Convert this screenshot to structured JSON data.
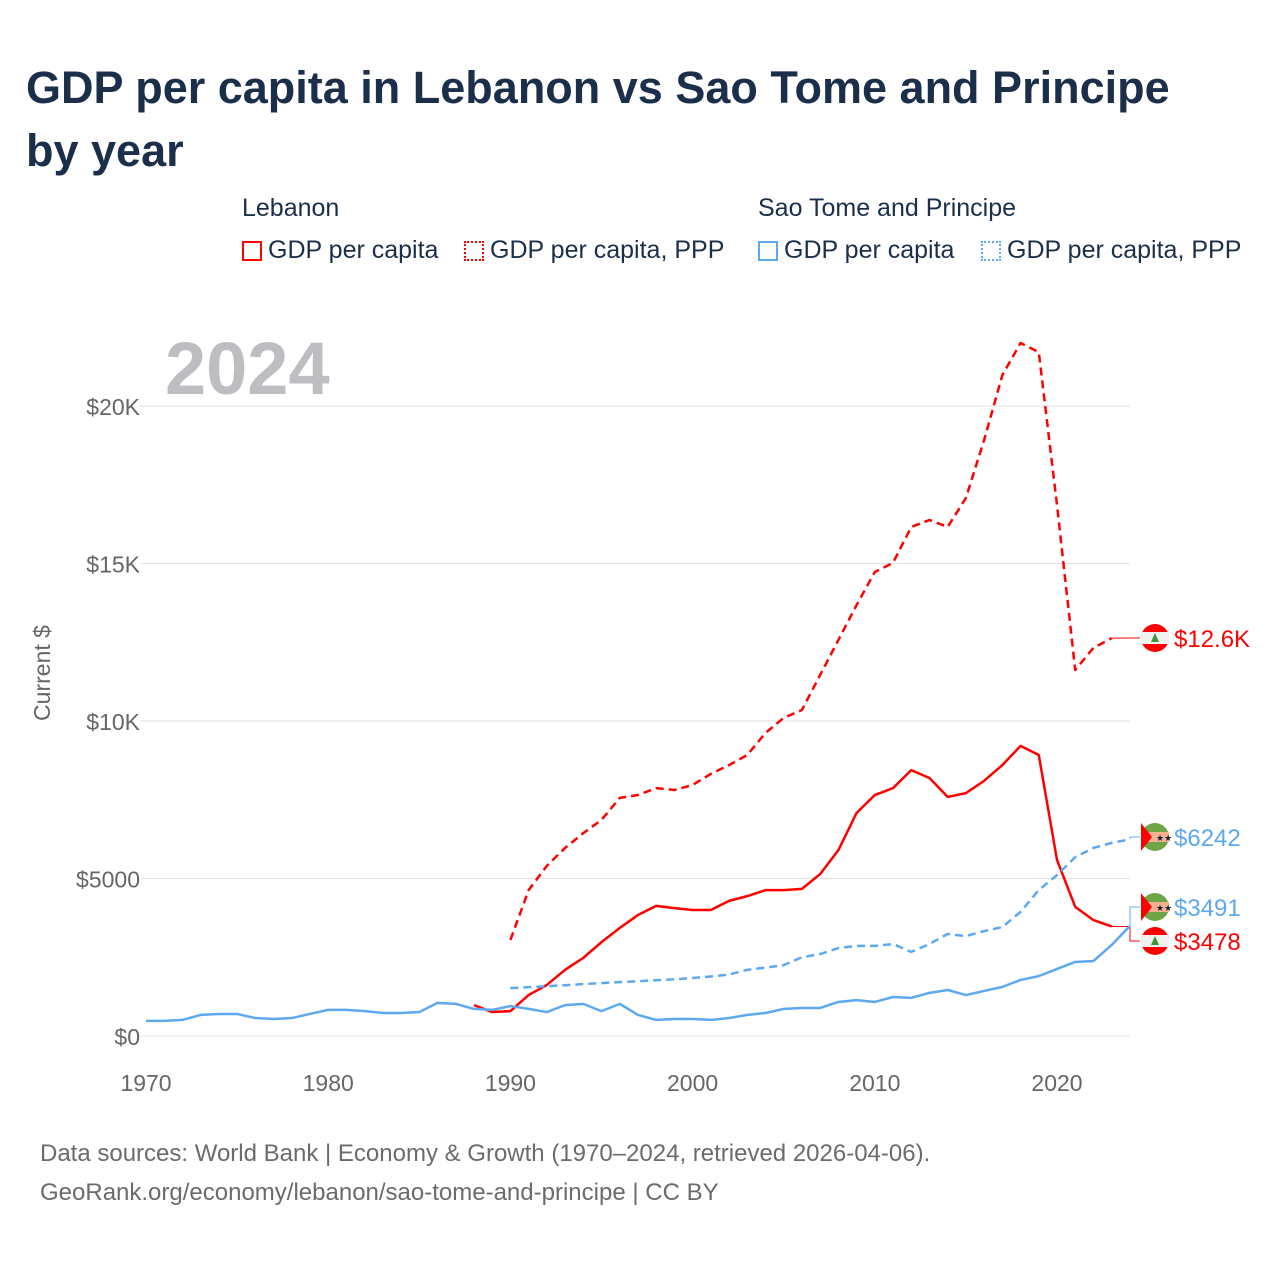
{
  "title": "GDP per capita in Lebanon vs Sao Tome and Principe by year",
  "legend": {
    "groups": [
      {
        "name": "Lebanon",
        "items": [
          "GDP per capita",
          "GDP per capita, PPP"
        ],
        "color": "#ff0000"
      },
      {
        "name": "Sao Tome and Principe",
        "items": [
          "GDP per capita",
          "GDP per capita, PPP"
        ],
        "color": "#5ea8f0"
      }
    ]
  },
  "footer": {
    "line1": "Data sources: World Bank | Economy & Growth (1970–2024, retrieved 2026-04-06).",
    "line2": "GeoRank.org/economy/lebanon/sao-tome-and-principe | CC BY"
  },
  "chart_data": {
    "type": "line",
    "title": "GDP per capita in Lebanon vs Sao Tome and Principe by year",
    "year_label": "2024",
    "xlabel": "",
    "ylabel": "Current $",
    "xlim": [
      1970,
      2024
    ],
    "ylim": [
      0,
      20000
    ],
    "xticks": [
      1970,
      1980,
      1990,
      2000,
      2010,
      2020
    ],
    "yticks": [
      {
        "v": 0,
        "label": "$0"
      },
      {
        "v": 5000,
        "label": "$5000"
      },
      {
        "v": 10000,
        "label": "$10K"
      },
      {
        "v": 15000,
        "label": "$15K"
      },
      {
        "v": 20000,
        "label": "$20K"
      }
    ],
    "series": [
      {
        "name": "Lebanon GDP per capita, PPP",
        "color": "#ff0000",
        "dash": true,
        "start": 1990,
        "end_label": "$12.6K",
        "flag": "lebanon",
        "values": [
          3050,
          4630,
          5400,
          5970,
          6440,
          6860,
          7560,
          7650,
          7870,
          7810,
          7970,
          8320,
          8600,
          8920,
          9620,
          10100,
          10350,
          11460,
          12570,
          13680,
          14730,
          15020,
          16160,
          16380,
          16160,
          17080,
          18920,
          20980,
          22000,
          21710,
          16860,
          11620,
          12320,
          12630
        ]
      },
      {
        "name": "Lebanon GDP per capita",
        "color": "#ff0000",
        "dash": false,
        "start": 1988,
        "end_label": "$3478",
        "flag": "lebanon",
        "values": [
          980,
          760,
          790,
          1300,
          1620,
          2100,
          2480,
          2980,
          3430,
          3840,
          4130,
          4060,
          4000,
          4000,
          4290,
          4440,
          4630,
          4630,
          4670,
          5140,
          5900,
          7080,
          7650,
          7870,
          8440,
          8190,
          7590,
          7710,
          8100,
          8600,
          9210,
          8920,
          5590,
          4100,
          3680,
          3478
        ]
      },
      {
        "name": "Sao Tome and Principe GDP per capita, PPP",
        "color": "#5ea8f0",
        "dash": true,
        "start": 1990,
        "end_label": "$6242",
        "flag": "stp",
        "values": [
          1520,
          1550,
          1580,
          1610,
          1650,
          1680,
          1710,
          1740,
          1770,
          1800,
          1840,
          1890,
          1950,
          2100,
          2170,
          2250,
          2500,
          2600,
          2790,
          2860,
          2860,
          2920,
          2670,
          2920,
          3240,
          3170,
          3330,
          3460,
          3940,
          4630,
          5110,
          5680,
          5970,
          6130,
          6242
        ]
      },
      {
        "name": "Sao Tome and Principe GDP per capita",
        "color": "#5ea8f0",
        "dash": false,
        "start": 1970,
        "end_label": "$3491",
        "flag": "stp",
        "values": [
          480,
          480,
          510,
          670,
          700,
          700,
          570,
          540,
          570,
          700,
          830,
          830,
          790,
          730,
          730,
          760,
          1050,
          1020,
          860,
          830,
          950,
          860,
          760,
          980,
          1020,
          790,
          1020,
          670,
          510,
          540,
          540,
          510,
          570,
          670,
          730,
          860,
          890,
          890,
          1080,
          1140,
          1080,
          1240,
          1210,
          1370,
          1460,
          1300,
          1430,
          1560,
          1780,
          1900,
          2130,
          2350,
          2380,
          2890,
          3491
        ]
      }
    ]
  }
}
